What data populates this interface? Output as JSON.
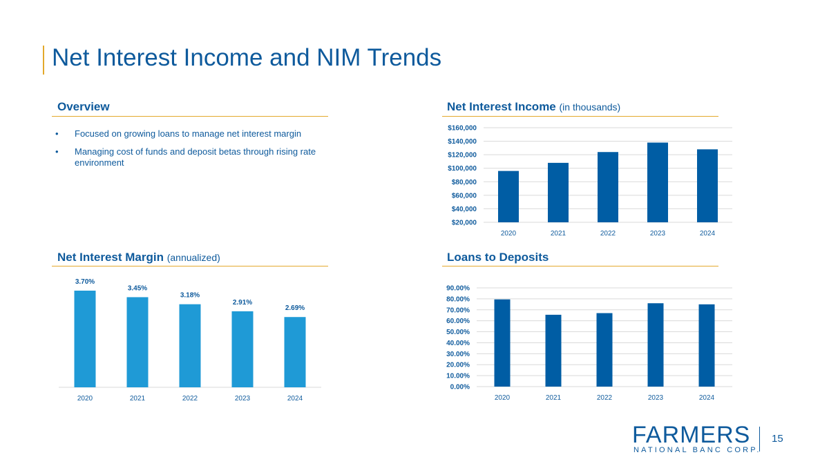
{
  "slide": {
    "title": "Net Interest Income and NIM Trends",
    "page_number": "15"
  },
  "overview": {
    "heading": "Overview",
    "bullets": [
      "Focused on growing loans to manage net interest margin",
      "Managing cost of funds and deposit betas through rising rate environment"
    ],
    "bullet_symbol": "•"
  },
  "nii": {
    "heading": "Net Interest Income",
    "heading_sub": "(in thousands)"
  },
  "nim": {
    "heading": "Net Interest Margin",
    "heading_sub": "(annualized)"
  },
  "ltd": {
    "heading": "Loans to Deposits"
  },
  "logo": {
    "word": "FARMERS",
    "sub": "NATIONAL BANC CORP."
  },
  "colors": {
    "primary_blue": "#0e5a9c",
    "bar_dark": "#005da4",
    "bar_light": "#1f9ad6",
    "accent_gold": "#e3a82b",
    "grid": "#d9d9d9"
  },
  "chart_data": [
    {
      "id": "nii",
      "type": "bar",
      "title": "Net Interest Income (in thousands)",
      "categories": [
        "2020",
        "2021",
        "2022",
        "2023",
        "2024"
      ],
      "values": [
        96000,
        108000,
        124000,
        138000,
        128000
      ],
      "ylim": [
        20000,
        160000
      ],
      "yticks": [
        20000,
        40000,
        60000,
        80000,
        100000,
        120000,
        140000,
        160000
      ],
      "ytick_labels": [
        "$20,000",
        "$40,000",
        "$60,000",
        "$80,000",
        "$100,000",
        "$120,000",
        "$140,000",
        "$160,000"
      ],
      "grid": true
    },
    {
      "id": "nim",
      "type": "bar",
      "title": "Net Interest Margin (annualized)",
      "categories": [
        "2020",
        "2021",
        "2022",
        "2023",
        "2024"
      ],
      "values": [
        3.7,
        3.45,
        3.18,
        2.91,
        2.69
      ],
      "data_labels": [
        "3.70%",
        "3.45%",
        "3.18%",
        "2.91%",
        "2.69%"
      ],
      "ylim": [
        0,
        3.7
      ],
      "grid": false
    },
    {
      "id": "ltd",
      "type": "bar",
      "title": "Loans to Deposits",
      "categories": [
        "2020",
        "2021",
        "2022",
        "2023",
        "2024"
      ],
      "values": [
        79.5,
        65.5,
        67.0,
        76.0,
        75.0
      ],
      "ylim": [
        0,
        90
      ],
      "yticks": [
        0,
        10,
        20,
        30,
        40,
        50,
        60,
        70,
        80,
        90
      ],
      "ytick_labels": [
        "0.00%",
        "10.00%",
        "20.00%",
        "30.00%",
        "40.00%",
        "50.00%",
        "60.00%",
        "70.00%",
        "80.00%",
        "90.00%"
      ],
      "grid": true
    }
  ]
}
